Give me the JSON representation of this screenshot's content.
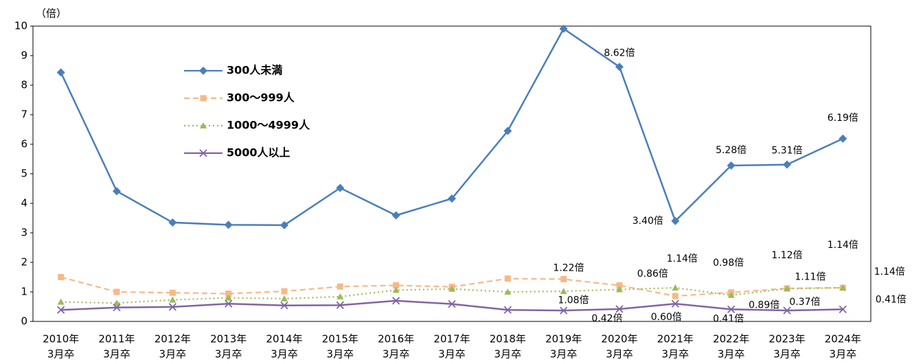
{
  "chart_data": {
    "type": "line",
    "y_axis_label": "（倍）",
    "categories": [
      [
        "2010年",
        "3月卒"
      ],
      [
        "2011年",
        "3月卒"
      ],
      [
        "2012年",
        "3月卒"
      ],
      [
        "2013年",
        "3月卒"
      ],
      [
        "2014年",
        "3月卒"
      ],
      [
        "2015年",
        "3月卒"
      ],
      [
        "2016年",
        "3月卒"
      ],
      [
        "2017年",
        "3月卒"
      ],
      [
        "2018年",
        "3月卒"
      ],
      [
        "2019年",
        "3月卒"
      ],
      [
        "2020年",
        "3月卒"
      ],
      [
        "2021年",
        "3月卒"
      ],
      [
        "2022年",
        "3月卒"
      ],
      [
        "2023年",
        "3月卒"
      ],
      [
        "2024年",
        "3月卒"
      ]
    ],
    "ylim": [
      0,
      10
    ],
    "yticks": [
      0,
      1,
      2,
      3,
      4,
      5,
      6,
      7,
      8,
      9,
      10
    ],
    "grid": false,
    "legend": "upper-left",
    "series": [
      {
        "name": "300人未満",
        "color": "#4a7ebb",
        "marker": "diamond",
        "dash": "solid",
        "values": [
          8.43,
          4.41,
          3.35,
          3.27,
          3.26,
          4.52,
          3.59,
          4.16,
          6.45,
          9.91,
          8.62,
          3.4,
          5.28,
          5.31,
          6.19
        ],
        "value_labels": [
          null,
          null,
          null,
          null,
          null,
          null,
          null,
          null,
          null,
          null,
          "8.62倍",
          "3.40倍",
          "5.28倍",
          "5.31倍",
          "6.19倍"
        ]
      },
      {
        "name": "300～999人",
        "color": "#f8b886",
        "marker": "square",
        "dash": "dashed",
        "values": [
          1.5,
          1.0,
          0.97,
          0.94,
          1.02,
          1.18,
          1.22,
          1.17,
          1.45,
          1.43,
          1.22,
          0.86,
          0.98,
          1.12,
          1.14
        ],
        "value_labels": [
          null,
          null,
          null,
          null,
          null,
          null,
          null,
          null,
          null,
          null,
          "1.22倍",
          "0.86倍",
          "0.98倍",
          "1.12倍",
          "1.14倍"
        ]
      },
      {
        "name": "1000～4999人",
        "color": "#9bbb59",
        "marker": "triangle",
        "dash": "dotted",
        "values": [
          0.66,
          0.62,
          0.73,
          0.8,
          0.77,
          0.84,
          1.06,
          1.1,
          1.0,
          1.02,
          1.08,
          1.14,
          0.89,
          1.11,
          1.14
        ],
        "value_labels": [
          null,
          null,
          null,
          null,
          null,
          null,
          null,
          null,
          null,
          null,
          "1.08倍",
          "1.14倍",
          "0.89倍",
          "1.11倍",
          "1.14倍"
        ]
      },
      {
        "name": "5000人以上",
        "color": "#8064a2",
        "marker": "x",
        "dash": "solid",
        "values": [
          0.39,
          0.47,
          0.49,
          0.6,
          0.54,
          0.55,
          0.7,
          0.59,
          0.39,
          0.37,
          0.42,
          0.6,
          0.41,
          0.37,
          0.41
        ],
        "value_labels": [
          null,
          null,
          null,
          null,
          null,
          null,
          null,
          null,
          null,
          null,
          "0.42倍",
          "0.60倍",
          "0.41倍",
          "0.37倍",
          "0.41倍"
        ]
      }
    ]
  }
}
